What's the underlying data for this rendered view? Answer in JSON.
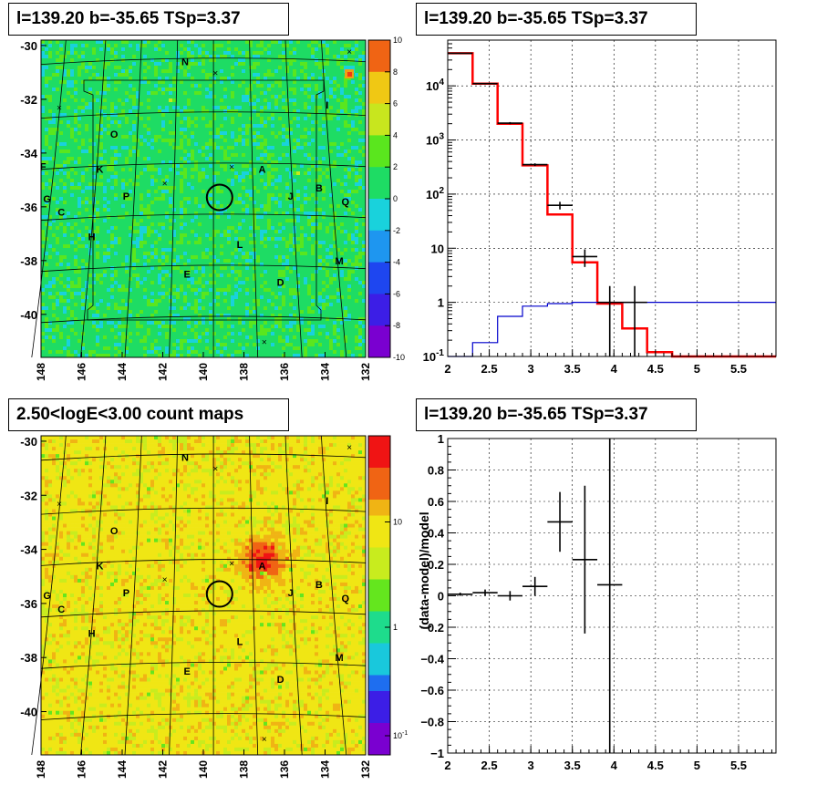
{
  "panels": {
    "tl_title": "l=139.20 b=-35.65 TSp=3.37",
    "tr_title": "l=139.20 b=-35.65 TSp=3.37",
    "bl_title": "2.50<logE<3.00 count maps",
    "br_title": "l=139.20 b=-35.65 TSp=3.37"
  },
  "colors": {
    "model_total": "#ff0000",
    "model_source": "#0000cc",
    "data": "#000000"
  },
  "chart_data": [
    {
      "type": "heatmap",
      "name": "residual-map",
      "x_ticks": [
        "148",
        "146",
        "144",
        "142",
        "140",
        "138",
        "136",
        "134",
        "132"
      ],
      "y_ticks": [
        "-30",
        "-32",
        "-34",
        "-36",
        "-38",
        "-40"
      ],
      "xlim": [
        148,
        132
      ],
      "ylim": [
        -41.6,
        -29.8
      ],
      "colorbar_ticks": [
        "10",
        "8",
        "6",
        "4",
        "2",
        "0",
        "-2",
        "-4",
        "-6",
        "-8",
        "-10"
      ],
      "colorbar_range": [
        -10,
        10
      ],
      "labels": [
        {
          "text": "N",
          "l": 140.9,
          "b": -30.6
        },
        {
          "text": "I",
          "l": 133.9,
          "b": -32.2
        },
        {
          "text": "O",
          "l": 144.4,
          "b": -33.3
        },
        {
          "text": "K",
          "l": 145.1,
          "b": -34.6
        },
        {
          "text": "F",
          "l": 147.9,
          "b": -34.5
        },
        {
          "text": "A",
          "l": 137.1,
          "b": -34.6
        },
        {
          "text": "B",
          "l": 134.3,
          "b": -35.3
        },
        {
          "text": "J",
          "l": 135.7,
          "b": -35.6
        },
        {
          "text": "P",
          "l": 143.8,
          "b": -35.6
        },
        {
          "text": "G",
          "l": 147.7,
          "b": -35.7
        },
        {
          "text": "Q",
          "l": 133.0,
          "b": -35.8
        },
        {
          "text": "C",
          "l": 147.0,
          "b": -36.2
        },
        {
          "text": "H",
          "l": 145.5,
          "b": -37.1
        },
        {
          "text": "L",
          "l": 138.2,
          "b": -37.4
        },
        {
          "text": "M",
          "l": 133.3,
          "b": -38.0
        },
        {
          "text": "E",
          "l": 140.8,
          "b": -38.5
        },
        {
          "text": "D",
          "l": 136.2,
          "b": -38.8
        }
      ],
      "markers": [
        {
          "l": 132.8,
          "b": -30.2
        },
        {
          "l": 139.4,
          "b": -31.0
        },
        {
          "l": 147.1,
          "b": -32.3
        },
        {
          "l": 138.6,
          "b": -34.5
        },
        {
          "l": 141.9,
          "b": -35.1
        },
        {
          "l": 137.0,
          "b": -41.0
        }
      ],
      "circle": {
        "l": 139.2,
        "b": -35.65
      }
    },
    {
      "type": "line",
      "name": "count-spectrum",
      "x_ticks": [
        "2",
        "2.5",
        "3",
        "3.5",
        "4",
        "4.5",
        "5",
        "5.5"
      ],
      "y_ticks": [
        "10^-1",
        "1",
        "10",
        "10^2",
        "10^3",
        "10^4"
      ],
      "xlim": [
        2,
        5.95
      ],
      "ylim": [
        0.1,
        70000
      ],
      "log_y": true,
      "grid": true,
      "bin_edges": [
        2,
        2.3,
        2.6,
        2.9,
        3.2,
        3.5,
        3.8,
        4.1,
        4.4,
        4.7,
        5.0,
        5.3,
        5.6,
        5.95
      ],
      "series": [
        {
          "key": "model_total",
          "values": [
            40000,
            11000,
            2000,
            340,
            42,
            5.5,
            0.95,
            0.33,
            0.12,
            0.095,
            0.095,
            0.095,
            0.095
          ]
        },
        {
          "key": "model_source",
          "values": [
            0.09,
            0.18,
            0.55,
            0.85,
            0.95,
            1.0,
            1.0,
            1.0,
            1.0,
            1.0,
            1.0,
            1.0,
            1.0
          ]
        }
      ],
      "points": [
        {
          "x": 2.15,
          "y": 40000,
          "ylo": 39000,
          "yhi": 41000
        },
        {
          "x": 2.45,
          "y": 11000,
          "ylo": 10700,
          "yhi": 11300
        },
        {
          "x": 2.75,
          "y": 2050,
          "ylo": 1960,
          "yhi": 2140
        },
        {
          "x": 3.05,
          "y": 350,
          "ylo": 330,
          "yhi": 370
        },
        {
          "x": 3.35,
          "y": 62,
          "ylo": 52,
          "yhi": 72
        },
        {
          "x": 3.65,
          "y": 7,
          "ylo": 4.5,
          "yhi": 9.5
        },
        {
          "x": 3.95,
          "y": 1,
          "ylo": 0.1,
          "yhi": 2
        },
        {
          "x": 4.25,
          "y": 1,
          "ylo": 0.1,
          "yhi": 2
        }
      ]
    },
    {
      "type": "heatmap",
      "name": "count-map",
      "x_ticks": [
        "148",
        "146",
        "144",
        "142",
        "140",
        "138",
        "136",
        "134",
        "132"
      ],
      "y_ticks": [
        "-30",
        "-32",
        "-34",
        "-36",
        "-38",
        "-40"
      ],
      "xlim": [
        148,
        132
      ],
      "ylim": [
        -41.6,
        -29.8
      ],
      "colorbar_ticks": [
        "10",
        "1",
        "10^-1"
      ],
      "labels": [
        {
          "text": "N",
          "l": 140.9,
          "b": -30.6
        },
        {
          "text": "I",
          "l": 133.9,
          "b": -32.2
        },
        {
          "text": "O",
          "l": 144.4,
          "b": -33.3
        },
        {
          "text": "K",
          "l": 145.1,
          "b": -34.6
        },
        {
          "text": "A",
          "l": 137.1,
          "b": -34.6
        },
        {
          "text": "B",
          "l": 134.3,
          "b": -35.3
        },
        {
          "text": "J",
          "l": 135.7,
          "b": -35.6
        },
        {
          "text": "P",
          "l": 143.8,
          "b": -35.6
        },
        {
          "text": "G",
          "l": 147.7,
          "b": -35.7
        },
        {
          "text": "Q",
          "l": 133.0,
          "b": -35.8
        },
        {
          "text": "C",
          "l": 147.0,
          "b": -36.2
        },
        {
          "text": "H",
          "l": 145.5,
          "b": -37.1
        },
        {
          "text": "L",
          "l": 138.2,
          "b": -37.4
        },
        {
          "text": "M",
          "l": 133.3,
          "b": -38.0
        },
        {
          "text": "E",
          "l": 140.8,
          "b": -38.5
        },
        {
          "text": "D",
          "l": 136.2,
          "b": -38.8
        }
      ],
      "markers": [
        {
          "l": 132.8,
          "b": -30.2
        },
        {
          "l": 139.4,
          "b": -31.0
        },
        {
          "l": 147.1,
          "b": -32.3
        },
        {
          "l": 138.6,
          "b": -34.5
        },
        {
          "l": 141.9,
          "b": -35.1
        },
        {
          "l": 137.0,
          "b": -41.0
        }
      ],
      "circle": {
        "l": 139.2,
        "b": -35.65
      },
      "hotspot": {
        "l": 137.1,
        "b": -34.4
      }
    },
    {
      "type": "scatter",
      "name": "residual-ratio",
      "ylabel": "(data-model)/model",
      "x_ticks": [
        "2",
        "2.5",
        "3",
        "3.5",
        "4",
        "4.5",
        "5",
        "5.5"
      ],
      "y_ticks": [
        "1",
        "0.8",
        "0.6",
        "0.4",
        "0.2",
        "0",
        "-0.2",
        "-0.4",
        "-0.6",
        "-0.8",
        "-1"
      ],
      "xlim": [
        2,
        5.95
      ],
      "ylim": [
        -1,
        1
      ],
      "grid": true,
      "points": [
        {
          "x": 2.15,
          "y": 0.01,
          "ylo": 0.0,
          "yhi": 0.02,
          "xhw": 0.15
        },
        {
          "x": 2.45,
          "y": 0.02,
          "ylo": 0.0,
          "yhi": 0.04,
          "xhw": 0.15
        },
        {
          "x": 2.75,
          "y": 0.0,
          "ylo": -0.03,
          "yhi": 0.03,
          "xhw": 0.15
        },
        {
          "x": 3.05,
          "y": 0.06,
          "ylo": 0.0,
          "yhi": 0.12,
          "xhw": 0.15
        },
        {
          "x": 3.35,
          "y": 0.47,
          "ylo": 0.28,
          "yhi": 0.66,
          "xhw": 0.15
        },
        {
          "x": 3.65,
          "y": 0.23,
          "ylo": -0.24,
          "yhi": 0.7,
          "xhw": 0.15
        },
        {
          "x": 3.95,
          "y": 0.07,
          "ylo": -1,
          "yhi": 1,
          "xhw": 0.15
        }
      ]
    }
  ]
}
